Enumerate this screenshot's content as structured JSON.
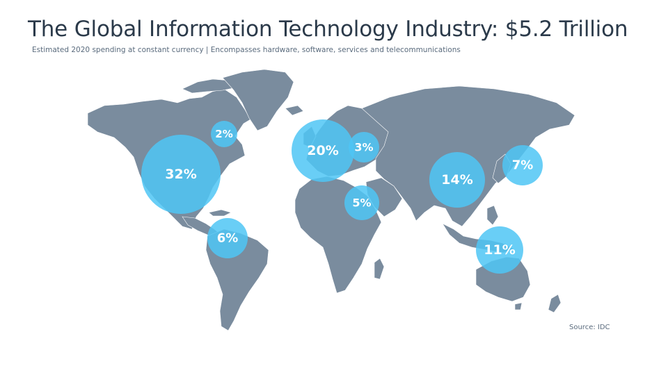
{
  "header": {
    "title": "The Global Information Technology Industry: $5.2 Trillion",
    "subtitle": "Estimated 2020 spending at constant currency | Encompasses hardware, software, services and telecommunications"
  },
  "map": {
    "land_color": "#7a8c9e",
    "bubble_color": "#4fc6f5",
    "regions": [
      {
        "label": "32%",
        "value": 32
      },
      {
        "label": "2%",
        "value": 2
      },
      {
        "label": "6%",
        "value": 6
      },
      {
        "label": "20%",
        "value": 20
      },
      {
        "label": "3%",
        "value": 3
      },
      {
        "label": "5%",
        "value": 5
      },
      {
        "label": "14%",
        "value": 14
      },
      {
        "label": "7%",
        "value": 7
      },
      {
        "label": "11%",
        "value": 11
      }
    ]
  },
  "footer": {
    "source": "Source:  IDC"
  }
}
